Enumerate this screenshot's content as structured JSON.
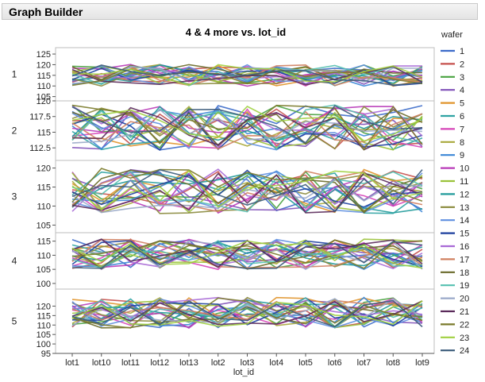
{
  "window": {
    "title": "Graph Builder"
  },
  "chart_data": {
    "type": "line",
    "title": "4 & 4 more vs. lot_id",
    "xlabel": "lot_id",
    "categories": [
      "lot1",
      "lot10",
      "lot11",
      "lot12",
      "lot13",
      "lot2",
      "lot3",
      "lot4",
      "lot5",
      "lot6",
      "lot7",
      "lot8",
      "lot9"
    ],
    "legend": {
      "title": "wafer",
      "placement": "right",
      "entries": [
        "1",
        "2",
        "3",
        "4",
        "5",
        "6",
        "7",
        "8",
        "9",
        "10",
        "11",
        "12",
        "13",
        "14",
        "15",
        "16",
        "17",
        "18",
        "19",
        "20",
        "21",
        "22",
        "23",
        "24"
      ],
      "colors": [
        "#3c6bc9",
        "#c6504d",
        "#48a23f",
        "#8050b8",
        "#e0932a",
        "#2fa3a3",
        "#d645b8",
        "#a8a83a",
        "#3a86d6",
        "#b83ab8",
        "#9ac23a",
        "#1f9a9a",
        "#8a8a3c",
        "#5f8fe0",
        "#1c3f9e",
        "#a86ad6",
        "#d08060",
        "#6a6a2a",
        "#55c0b0",
        "#9aa8c8",
        "#5a2a5a",
        "#7a7a2a",
        "#a0d040",
        "#3a5a7a"
      ]
    },
    "grid": false,
    "facets": [
      {
        "label": "1",
        "ylim": [
          103,
          128
        ],
        "yticks": [
          105,
          110,
          115,
          120,
          125
        ],
        "range": [
          109,
          121
        ]
      },
      {
        "label": "2",
        "ylim": [
          110.5,
          120
        ],
        "yticks": [
          112.5,
          115,
          117.5,
          120
        ],
        "range": [
          111.5,
          120
        ]
      },
      {
        "label": "3",
        "ylim": [
          103,
          122
        ],
        "yticks": [
          105,
          110,
          115,
          120
        ],
        "range": [
          107,
          121
        ]
      },
      {
        "label": "4",
        "ylim": [
          98,
          118
        ],
        "yticks": [
          100,
          105,
          110,
          115
        ],
        "range": [
          104,
          117
        ]
      },
      {
        "label": "5",
        "ylim": [
          95,
          129
        ],
        "yticks": [
          95,
          100,
          105,
          110,
          115,
          120
        ],
        "range": [
          107,
          126
        ]
      }
    ]
  }
}
